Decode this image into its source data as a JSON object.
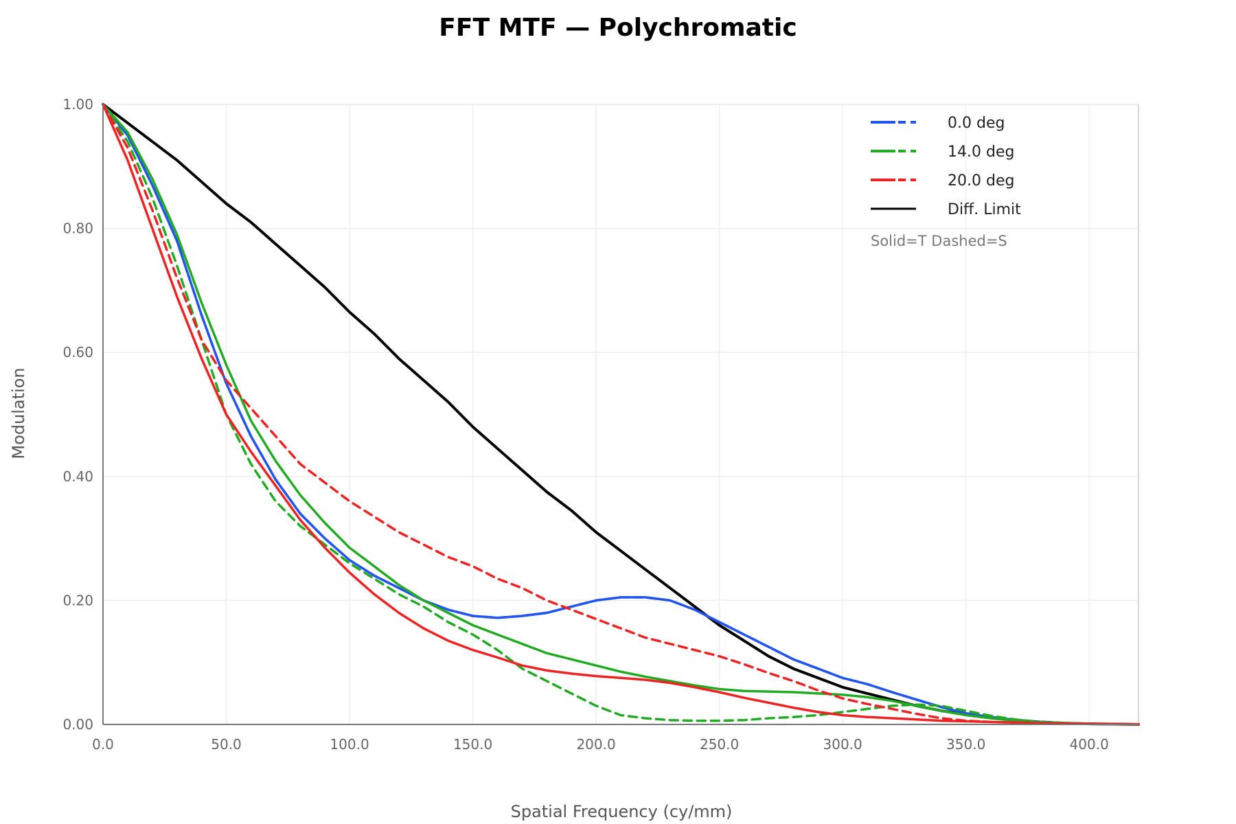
{
  "chart_data": {
    "type": "line",
    "title": "FFT MTF — Polychromatic",
    "xlabel": "Spatial Frequency (cy/mm)",
    "ylabel": "Modulation",
    "xlim": [
      0,
      420
    ],
    "ylim": [
      0,
      1.0
    ],
    "x_ticks": [
      "0.0",
      "50.0",
      "100.0",
      "150.0",
      "200.0",
      "250.0",
      "300.0",
      "350.0",
      "400.0"
    ],
    "y_ticks": [
      "0.00",
      "0.20",
      "0.40",
      "0.60",
      "0.80",
      "1.00"
    ],
    "grid": true,
    "legend_position": "top-right",
    "legend_note": "Solid=T Dashed=S",
    "legend": [
      {
        "label": "0.0 deg",
        "color": "#2255ee",
        "style": "solid+dashed"
      },
      {
        "label": "14.0 deg",
        "color": "#22aa22",
        "style": "solid+dashed"
      },
      {
        "label": "20.0 deg",
        "color": "#ee2222",
        "style": "solid+dashed"
      },
      {
        "label": "Diff. Limit",
        "color": "#000000",
        "style": "solid"
      }
    ],
    "series": [
      {
        "name": "Diff. Limit",
        "color": "#000000",
        "dash": false,
        "width": 4,
        "points": [
          [
            0,
            1.0
          ],
          [
            10,
            0.97
          ],
          [
            20,
            0.94
          ],
          [
            30,
            0.91
          ],
          [
            40,
            0.875
          ],
          [
            50,
            0.84
          ],
          [
            60,
            0.81
          ],
          [
            70,
            0.775
          ],
          [
            80,
            0.74
          ],
          [
            90,
            0.705
          ],
          [
            100,
            0.665
          ],
          [
            110,
            0.63
          ],
          [
            120,
            0.59
          ],
          [
            130,
            0.555
          ],
          [
            140,
            0.52
          ],
          [
            150,
            0.48
          ],
          [
            160,
            0.445
          ],
          [
            170,
            0.41
          ],
          [
            180,
            0.375
          ],
          [
            190,
            0.345
          ],
          [
            200,
            0.31
          ],
          [
            210,
            0.28
          ],
          [
            220,
            0.25
          ],
          [
            230,
            0.22
          ],
          [
            240,
            0.19
          ],
          [
            250,
            0.16
          ],
          [
            260,
            0.135
          ],
          [
            270,
            0.11
          ],
          [
            280,
            0.09
          ],
          [
            290,
            0.075
          ],
          [
            300,
            0.06
          ],
          [
            310,
            0.05
          ],
          [
            320,
            0.04
          ],
          [
            330,
            0.03
          ],
          [
            340,
            0.022
          ],
          [
            350,
            0.016
          ],
          [
            360,
            0.011
          ],
          [
            370,
            0.007
          ],
          [
            380,
            0.004
          ],
          [
            390,
            0.002
          ],
          [
            400,
            0.001
          ],
          [
            410,
            0.0005
          ],
          [
            420,
            0.0
          ]
        ]
      },
      {
        "name": "0.0 deg",
        "color": "#2255ee",
        "dash": false,
        "width": 3.5,
        "points": [
          [
            0,
            1.0
          ],
          [
            10,
            0.95
          ],
          [
            20,
            0.87
          ],
          [
            30,
            0.78
          ],
          [
            40,
            0.66
          ],
          [
            50,
            0.55
          ],
          [
            60,
            0.465
          ],
          [
            70,
            0.395
          ],
          [
            80,
            0.34
          ],
          [
            90,
            0.3
          ],
          [
            100,
            0.265
          ],
          [
            110,
            0.24
          ],
          [
            120,
            0.22
          ],
          [
            130,
            0.2
          ],
          [
            140,
            0.185
          ],
          [
            150,
            0.175
          ],
          [
            160,
            0.172
          ],
          [
            170,
            0.175
          ],
          [
            180,
            0.18
          ],
          [
            190,
            0.19
          ],
          [
            200,
            0.2
          ],
          [
            210,
            0.205
          ],
          [
            220,
            0.205
          ],
          [
            230,
            0.2
          ],
          [
            240,
            0.185
          ],
          [
            250,
            0.165
          ],
          [
            260,
            0.145
          ],
          [
            270,
            0.125
          ],
          [
            280,
            0.105
          ],
          [
            290,
            0.09
          ],
          [
            300,
            0.075
          ],
          [
            310,
            0.065
          ],
          [
            320,
            0.052
          ],
          [
            330,
            0.04
          ],
          [
            340,
            0.028
          ],
          [
            350,
            0.018
          ],
          [
            360,
            0.012
          ],
          [
            370,
            0.007
          ],
          [
            380,
            0.004
          ],
          [
            390,
            0.002
          ],
          [
            400,
            0.001
          ],
          [
            420,
            0.0
          ]
        ]
      },
      {
        "name": "0.0 deg",
        "color": "#2255ee",
        "dash": true,
        "width": 3.5,
        "points": [
          [
            0,
            1.0
          ],
          [
            10,
            0.95
          ],
          [
            20,
            0.87
          ],
          [
            30,
            0.78
          ],
          [
            40,
            0.66
          ],
          [
            50,
            0.55
          ],
          [
            60,
            0.465
          ],
          [
            70,
            0.395
          ],
          [
            80,
            0.34
          ],
          [
            90,
            0.3
          ],
          [
            100,
            0.265
          ],
          [
            110,
            0.24
          ],
          [
            120,
            0.22
          ],
          [
            130,
            0.2
          ],
          [
            140,
            0.185
          ],
          [
            150,
            0.175
          ],
          [
            160,
            0.172
          ],
          [
            170,
            0.175
          ],
          [
            180,
            0.18
          ],
          [
            190,
            0.19
          ],
          [
            200,
            0.2
          ],
          [
            210,
            0.205
          ],
          [
            220,
            0.205
          ],
          [
            230,
            0.2
          ],
          [
            240,
            0.185
          ],
          [
            250,
            0.165
          ],
          [
            260,
            0.145
          ],
          [
            270,
            0.125
          ],
          [
            280,
            0.105
          ],
          [
            290,
            0.09
          ],
          [
            300,
            0.075
          ],
          [
            310,
            0.065
          ],
          [
            320,
            0.052
          ],
          [
            330,
            0.04
          ],
          [
            340,
            0.028
          ],
          [
            350,
            0.018
          ],
          [
            360,
            0.012
          ],
          [
            370,
            0.007
          ],
          [
            380,
            0.004
          ],
          [
            390,
            0.002
          ],
          [
            400,
            0.001
          ],
          [
            420,
            0.0
          ]
        ]
      },
      {
        "name": "14.0 deg",
        "color": "#22aa22",
        "dash": false,
        "width": 3.5,
        "points": [
          [
            0,
            1.0
          ],
          [
            10,
            0.955
          ],
          [
            20,
            0.88
          ],
          [
            30,
            0.79
          ],
          [
            40,
            0.68
          ],
          [
            50,
            0.58
          ],
          [
            60,
            0.49
          ],
          [
            70,
            0.425
          ],
          [
            80,
            0.37
          ],
          [
            90,
            0.325
          ],
          [
            100,
            0.285
          ],
          [
            110,
            0.255
          ],
          [
            120,
            0.225
          ],
          [
            130,
            0.2
          ],
          [
            140,
            0.18
          ],
          [
            150,
            0.16
          ],
          [
            160,
            0.145
          ],
          [
            170,
            0.13
          ],
          [
            180,
            0.115
          ],
          [
            190,
            0.105
          ],
          [
            200,
            0.095
          ],
          [
            210,
            0.085
          ],
          [
            220,
            0.077
          ],
          [
            230,
            0.07
          ],
          [
            240,
            0.063
          ],
          [
            250,
            0.057
          ],
          [
            260,
            0.054
          ],
          [
            270,
            0.053
          ],
          [
            280,
            0.052
          ],
          [
            290,
            0.05
          ],
          [
            300,
            0.048
          ],
          [
            310,
            0.044
          ],
          [
            320,
            0.038
          ],
          [
            330,
            0.03
          ],
          [
            340,
            0.022
          ],
          [
            350,
            0.015
          ],
          [
            360,
            0.01
          ],
          [
            370,
            0.006
          ],
          [
            380,
            0.003
          ],
          [
            400,
            0.001
          ],
          [
            420,
            0.0
          ]
        ]
      },
      {
        "name": "14.0 deg",
        "color": "#22aa22",
        "dash": true,
        "width": 3.5,
        "points": [
          [
            0,
            1.0
          ],
          [
            10,
            0.94
          ],
          [
            20,
            0.85
          ],
          [
            30,
            0.74
          ],
          [
            40,
            0.62
          ],
          [
            50,
            0.5
          ],
          [
            60,
            0.42
          ],
          [
            70,
            0.36
          ],
          [
            80,
            0.32
          ],
          [
            90,
            0.29
          ],
          [
            100,
            0.26
          ],
          [
            110,
            0.235
          ],
          [
            120,
            0.21
          ],
          [
            130,
            0.19
          ],
          [
            140,
            0.165
          ],
          [
            150,
            0.145
          ],
          [
            160,
            0.12
          ],
          [
            170,
            0.09
          ],
          [
            180,
            0.07
          ],
          [
            190,
            0.05
          ],
          [
            200,
            0.03
          ],
          [
            210,
            0.015
          ],
          [
            220,
            0.01
          ],
          [
            230,
            0.007
          ],
          [
            240,
            0.006
          ],
          [
            250,
            0.006
          ],
          [
            260,
            0.007
          ],
          [
            270,
            0.01
          ],
          [
            280,
            0.012
          ],
          [
            290,
            0.015
          ],
          [
            300,
            0.02
          ],
          [
            310,
            0.025
          ],
          [
            320,
            0.03
          ],
          [
            330,
            0.032
          ],
          [
            340,
            0.03
          ],
          [
            350,
            0.022
          ],
          [
            360,
            0.014
          ],
          [
            370,
            0.008
          ],
          [
            380,
            0.004
          ],
          [
            400,
            0.001
          ],
          [
            420,
            0.0
          ]
        ]
      },
      {
        "name": "20.0 deg",
        "color": "#ee2222",
        "dash": false,
        "width": 3.5,
        "points": [
          [
            0,
            1.0
          ],
          [
            10,
            0.91
          ],
          [
            20,
            0.8
          ],
          [
            30,
            0.69
          ],
          [
            40,
            0.59
          ],
          [
            50,
            0.5
          ],
          [
            60,
            0.44
          ],
          [
            70,
            0.385
          ],
          [
            80,
            0.33
          ],
          [
            90,
            0.285
          ],
          [
            100,
            0.245
          ],
          [
            110,
            0.21
          ],
          [
            120,
            0.18
          ],
          [
            130,
            0.155
          ],
          [
            140,
            0.135
          ],
          [
            150,
            0.12
          ],
          [
            160,
            0.108
          ],
          [
            170,
            0.095
          ],
          [
            180,
            0.087
          ],
          [
            190,
            0.082
          ],
          [
            200,
            0.078
          ],
          [
            210,
            0.075
          ],
          [
            220,
            0.072
          ],
          [
            230,
            0.067
          ],
          [
            240,
            0.06
          ],
          [
            250,
            0.052
          ],
          [
            260,
            0.043
          ],
          [
            270,
            0.035
          ],
          [
            280,
            0.027
          ],
          [
            290,
            0.02
          ],
          [
            300,
            0.015
          ],
          [
            310,
            0.012
          ],
          [
            320,
            0.01
          ],
          [
            330,
            0.008
          ],
          [
            340,
            0.006
          ],
          [
            350,
            0.005
          ],
          [
            360,
            0.004
          ],
          [
            380,
            0.002
          ],
          [
            400,
            0.001
          ],
          [
            420,
            0.0
          ]
        ]
      },
      {
        "name": "20.0 deg",
        "color": "#ee2222",
        "dash": true,
        "width": 3.5,
        "points": [
          [
            0,
            1.0
          ],
          [
            10,
            0.93
          ],
          [
            20,
            0.83
          ],
          [
            30,
            0.72
          ],
          [
            40,
            0.62
          ],
          [
            50,
            0.555
          ],
          [
            60,
            0.51
          ],
          [
            70,
            0.465
          ],
          [
            80,
            0.42
          ],
          [
            90,
            0.39
          ],
          [
            100,
            0.36
          ],
          [
            110,
            0.335
          ],
          [
            120,
            0.31
          ],
          [
            130,
            0.29
          ],
          [
            140,
            0.27
          ],
          [
            150,
            0.255
          ],
          [
            160,
            0.235
          ],
          [
            170,
            0.22
          ],
          [
            180,
            0.2
          ],
          [
            190,
            0.185
          ],
          [
            200,
            0.17
          ],
          [
            210,
            0.155
          ],
          [
            220,
            0.14
          ],
          [
            230,
            0.13
          ],
          [
            240,
            0.12
          ],
          [
            250,
            0.11
          ],
          [
            260,
            0.097
          ],
          [
            270,
            0.083
          ],
          [
            280,
            0.07
          ],
          [
            290,
            0.055
          ],
          [
            300,
            0.042
          ],
          [
            310,
            0.033
          ],
          [
            320,
            0.025
          ],
          [
            330,
            0.017
          ],
          [
            340,
            0.01
          ],
          [
            350,
            0.006
          ],
          [
            360,
            0.004
          ],
          [
            380,
            0.002
          ],
          [
            400,
            0.001
          ],
          [
            420,
            0.0
          ]
        ]
      }
    ]
  }
}
